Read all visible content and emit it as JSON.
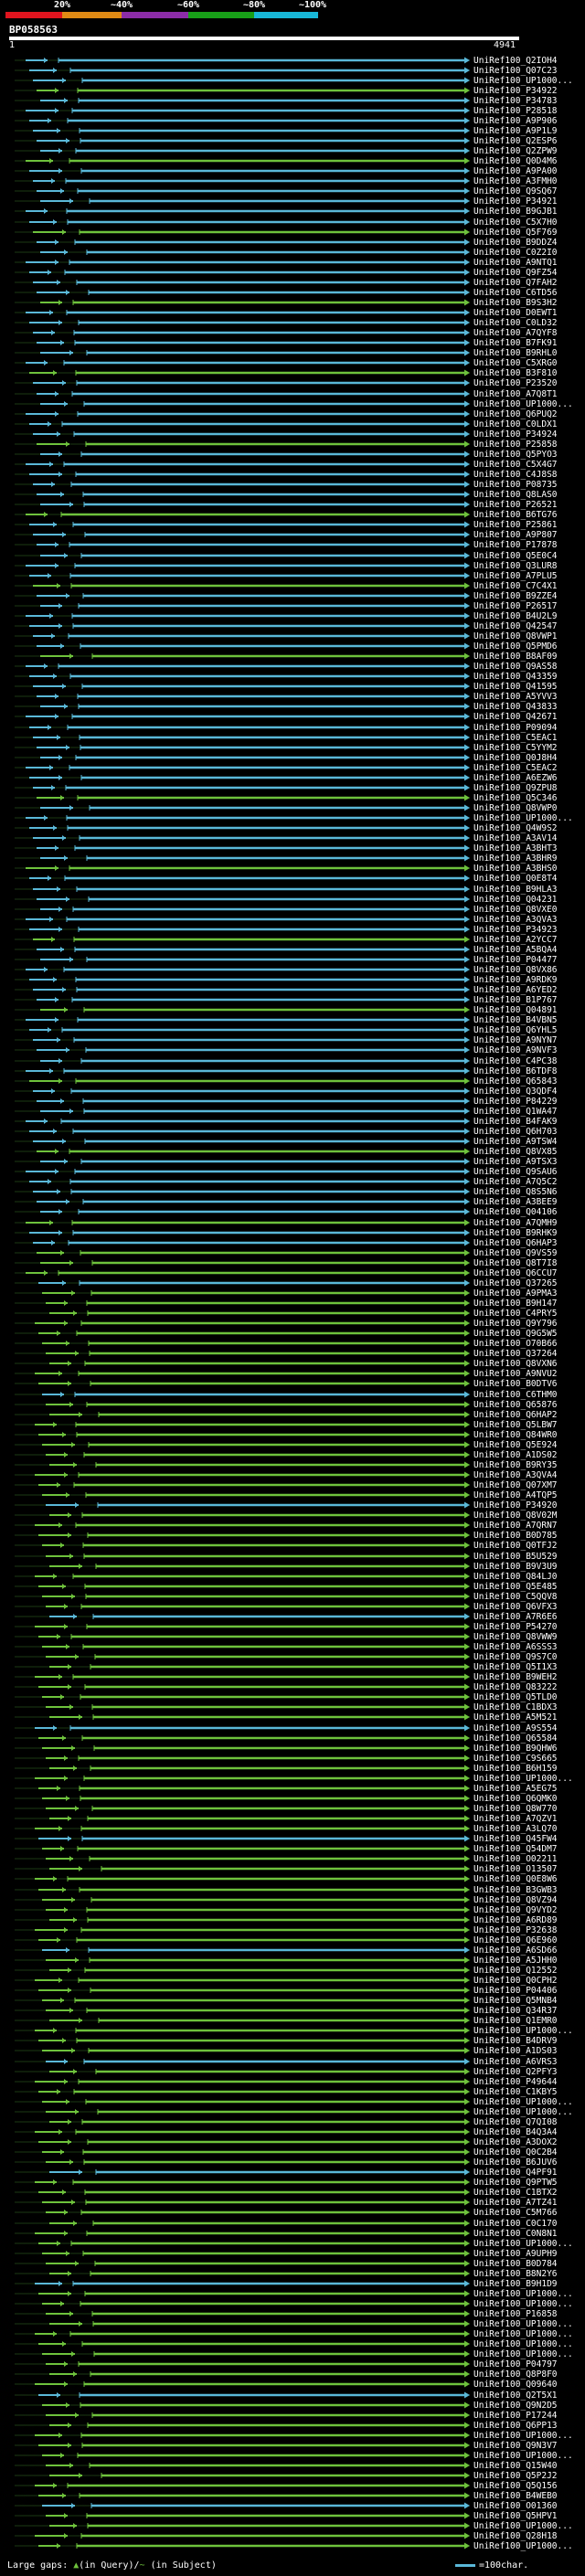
{
  "scale": {
    "labels": [
      "20%",
      "~40%",
      "~60%",
      "~80%",
      "~100%"
    ],
    "colors": [
      "#e0141e",
      "#e08a14",
      "#8c2ca8",
      "#18a018",
      "#18b8d8"
    ]
  },
  "query": {
    "id": "BP058563",
    "start": "1",
    "end": "4941"
  },
  "colors": {
    "green": "#6ec23c",
    "dark_green": "#2e7a1e",
    "cyan": "#5ab8d8",
    "thin": "#1c3a14"
  },
  "hits": [
    "UniRef100_Q2IOH4",
    "UniRef100_Q07C23",
    "UniRef100_UP1000...",
    "UniRef100_P34922",
    "UniRef100_P34783",
    "UniRef100_P28518",
    "UniRef100_A9P906",
    "UniRef100_A9P1L9",
    "UniRef100_Q2ESP6",
    "UniRef100_Q2ZPW9",
    "UniRef100_Q0D4M6",
    "UniRef100_A9PA00",
    "UniRef100_A3FMH0",
    "UniRef100_Q9SQ67",
    "UniRef100_P34921",
    "UniRef100_B9GJB1",
    "UniRef100_C5X7H0",
    "UniRef100_Q5F769",
    "UniRef100_B9DDZ4",
    "UniRef100_C0Z2I0",
    "UniRef100_A9NTQ1",
    "UniRef100_Q9FZ54",
    "UniRef100_Q7FAH2",
    "UniRef100_C6TD56",
    "UniRef100_B9S3H2",
    "UniRef100_D0EWT1",
    "UniRef100_C0LD32",
    "UniRef100_A7QYF8",
    "UniRef100_B7FK91",
    "UniRef100_B9RHL0",
    "UniRef100_C5XRG0",
    "UniRef100_B3F810",
    "UniRef100_P23520",
    "UniRef100_A7Q8T1",
    "UniRef100_UP1000...",
    "UniRef100_Q6PUQ2",
    "UniRef100_C0LDX1",
    "UniRef100_P34924",
    "UniRef100_P25858",
    "UniRef100_Q5PYO3",
    "UniRef100_C5X4G7",
    "UniRef100_C4J8S8",
    "UniRef100_P08735",
    "UniRef100_Q8LAS0",
    "UniRef100_P26521",
    "UniRef100_B6TG76",
    "UniRef100_P25861",
    "UniRef100_A9P807",
    "UniRef100_P17878",
    "UniRef100_Q5E0C4",
    "UniRef100_Q3LUR8",
    "UniRef100_A7PLU5",
    "UniRef100_C7C4X1",
    "UniRef100_B9ZZE4",
    "UniRef100_P26517",
    "UniRef100_B4U2L9",
    "UniRef100_Q42547",
    "UniRef100_Q8VWP1",
    "UniRef100_Q5PMD6",
    "UniRef100_B8AF09",
    "UniRef100_Q9AS58",
    "UniRef100_Q43359",
    "UniRef100_Q41595",
    "UniRef100_A5YVV3",
    "UniRef100_Q43833",
    "UniRef100_Q42671",
    "UniRef100_P09094",
    "UniRef100_C5EAC1",
    "UniRef100_C5YYM2",
    "UniRef100_Q0J8H4",
    "UniRef100_C5EAC2",
    "UniRef100_A6EZW6",
    "UniRef100_Q9ZPU8",
    "UniRef100_Q5C346",
    "UniRef100_Q8VWP0",
    "UniRef100_UP1000...",
    "UniRef100_Q4W9S2",
    "UniRef100_A3AV14",
    "UniRef100_A3BHT3",
    "UniRef100_A3BHR9",
    "UniRef100_A3BHS0",
    "UniRef100_Q0E8T4",
    "UniRef100_B9HLA3",
    "UniRef100_Q04231",
    "UniRef100_Q8VXE0",
    "UniRef100_A3QVA3",
    "UniRef100_P34923",
    "UniRef100_A2YCC7",
    "UniRef100_A5BQA4",
    "UniRef100_P04477",
    "UniRef100_Q8VX86",
    "UniRef100_A9RDK9",
    "UniRef100_A6YED2",
    "UniRef100_B1P767",
    "UniRef100_Q04891",
    "UniRef100_B4VBN5",
    "UniRef100_Q6YHL5",
    "UniRef100_A9NYN7",
    "UniRef100_A9NVF3",
    "UniRef100_C4PC38",
    "UniRef100_B6TDF8",
    "UniRef100_Q65843",
    "UniRef100_Q3QDF4",
    "UniRef100_P84229",
    "UniRef100_Q1WA47",
    "UniRef100_B4FAK9",
    "UniRef100_Q6H703",
    "UniRef100_A9TSW4",
    "UniRef100_Q8VX85",
    "UniRef100_A9TSX3",
    "UniRef100_Q9SAU6",
    "UniRef100_A7Q5C2",
    "UniRef100_Q8S5N6",
    "UniRef100_A3BEE9",
    "UniRef100_Q04106",
    "UniRef100_A7QMH9",
    "UniRef100_B9RHK9",
    "UniRef100_Q6HAP3",
    "UniRef100_Q9VS59",
    "UniRef100_Q8T7I8",
    "UniRef100_Q6CCU7",
    "UniRef100_Q37265",
    "UniRef100_A9PMA3",
    "UniRef100_B9H147",
    "UniRef100_C4PRY5",
    "UniRef100_Q9Y796",
    "UniRef100_Q9G5W5",
    "UniRef100_O70B66",
    "UniRef100_Q37264",
    "UniRef100_Q8VXN6",
    "UniRef100_A9NVU2",
    "UniRef100_B0DTV6",
    "UniRef100_C6THM0",
    "UniRef100_Q65876",
    "UniRef100_Q6HAP2",
    "UniRef100_Q5LBW7",
    "UniRef100_Q84WR0",
    "UniRef100_Q5E924",
    "UniRef100_A1DS02",
    "UniRef100_B9RY35",
    "UniRef100_A3QVA4",
    "UniRef100_Q07XM7",
    "UniRef100_A4TQP5",
    "UniRef100_P34920",
    "UniRef100_Q8V02M",
    "UniRef100_A7QRN7",
    "UniRef100_B0D785",
    "UniRef100_Q0TFJ2",
    "UniRef100_B5U529",
    "UniRef100_B9V3U9",
    "UniRef100_Q84LJ0",
    "UniRef100_Q5E485",
    "UniRef100_C5QQV8",
    "UniRef100_Q6VFX3",
    "UniRef100_A7R6E6",
    "UniRef100_P54270",
    "UniRef100_Q8VWW9",
    "UniRef100_A6SSS3",
    "UniRef100_Q9S7C0",
    "UniRef100_Q5I1X3",
    "UniRef100_B9WEH2",
    "UniRef100_Q83222",
    "UniRef100_Q5TLD0",
    "UniRef100_C1BDX3",
    "UniRef100_A5M521",
    "UniRef100_A9S554",
    "UniRef100_Q65584",
    "UniRef100_B9QHW6",
    "UniRef100_C9S665",
    "UniRef100_B6H159",
    "UniRef100_UP1000...",
    "UniRef100_A5EG75",
    "UniRef100_Q6QMK0",
    "UniRef100_Q8W770",
    "UniRef100_A7QZV1",
    "UniRef100_A3LQ70",
    "UniRef100_Q45FW4",
    "UniRef100_Q54DM7",
    "UniRef100_O02211",
    "UniRef100_O13507",
    "UniRef100_Q0E8W6",
    "UniRef100_B3GWB3",
    "UniRef100_Q8VZ94",
    "UniRef100_Q9VYD2",
    "UniRef100_A6RD89",
    "UniRef100_P32638",
    "UniRef100_Q6E960",
    "UniRef100_A6SD66",
    "UniRef100_A5JHH0",
    "UniRef100_Q12552",
    "UniRef100_Q0CPH2",
    "UniRef100_P04406",
    "UniRef100_Q5MNB4",
    "UniRef100_Q34R37",
    "UniRef100_Q1EMR0",
    "UniRef100_UP1000...",
    "UniRef100_B4DRV9",
    "UniRef100_A1DS03",
    "UniRef100_A6VRS3",
    "UniRef100_Q2PFY3",
    "UniRef100_P49644",
    "UniRef100_C1KBY5",
    "UniRef100_UP1000...",
    "UniRef100_UP1000...",
    "UniRef100_Q7QI08",
    "UniRef100_B4Q3A4",
    "UniRef100_A3DOX2",
    "UniRef100_Q0C2B4",
    "UniRef100_B6JUV6",
    "UniRef100_Q4PF91",
    "UniRef100_Q9PTW5",
    "UniRef100_C1BTX2",
    "UniRef100_A7TZ41",
    "UniRef100_C5M766",
    "UniRef100_C0C170",
    "UniRef100_C0N8N1",
    "UniRef100_UP1000...",
    "UniRef100_A9UPH9",
    "UniRef100_B0D784",
    "UniRef100_B8N2Y6",
    "UniRef100_B9H1D9",
    "UniRef100_UP1000...",
    "UniRef100_UP1000...",
    "UniRef100_P16858",
    "UniRef100_UP1000...",
    "UniRef100_UP1000...",
    "UniRef100_UP1000...",
    "UniRef100_UP1000...",
    "UniRef100_P04797",
    "UniRef100_Q8P8F0",
    "UniRef100_Q09640",
    "UniRef100_Q2T5X1",
    "UniRef100_Q9N2D5",
    "UniRef100_P17244",
    "UniRef100_Q6PP13",
    "UniRef100_UP1000...",
    "UniRef100_Q9N3V7",
    "UniRef100_UP1000...",
    "UniRef100_Q15W40",
    "UniRef100_Q5P2J2",
    "UniRef100_Q5Q156",
    "UniRef100_B4WEB0",
    "UniRef100_O01360",
    "UniRef100_Q5HPV1",
    "UniRef100_UP1000...",
    "UniRef100_Q28H18",
    "UniRef100_UP1000..."
  ],
  "legend": {
    "large_gaps_label": "Large gaps:",
    "in_query_label": "(in Query)",
    "in_subject_label": "(in Subject)",
    "scale_note": "=100char."
  }
}
